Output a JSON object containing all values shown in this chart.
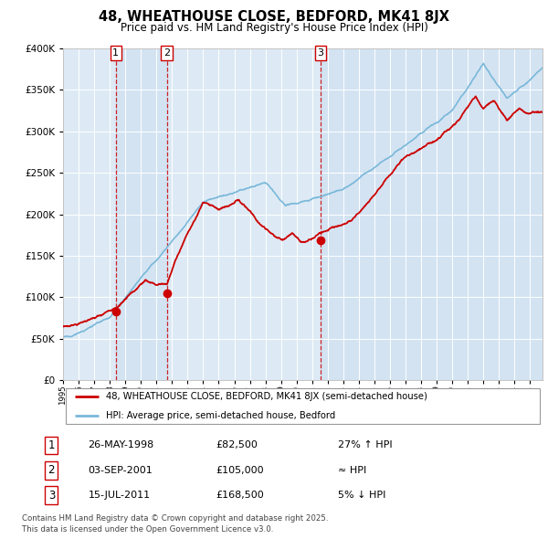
{
  "title": "48, WHEATHOUSE CLOSE, BEDFORD, MK41 8JX",
  "subtitle": "Price paid vs. HM Land Registry's House Price Index (HPI)",
  "legend_property": "48, WHEATHOUSE CLOSE, BEDFORD, MK41 8JX (semi-detached house)",
  "legend_hpi": "HPI: Average price, semi-detached house, Bedford",
  "transactions": [
    {
      "num": 1,
      "date": "26-MAY-1998",
      "price": 82500,
      "rel": "27% ↑ HPI",
      "year": 1998.39
    },
    {
      "num": 2,
      "date": "03-SEP-2001",
      "price": 105000,
      "rel": "≈ HPI",
      "year": 2001.67
    },
    {
      "num": 3,
      "date": "15-JUL-2011",
      "price": 168500,
      "rel": "5% ↓ HPI",
      "year": 2011.54
    }
  ],
  "footnote1": "Contains HM Land Registry data © Crown copyright and database right 2025.",
  "footnote2": "This data is licensed under the Open Government Licence v3.0.",
  "hpi_color": "#7ab8d9",
  "property_color": "#cc0000",
  "plot_bg_color": "#ddeaf5",
  "grid_color": "#ffffff",
  "ylim": [
    0,
    400000
  ],
  "xlim_start": 1995.0,
  "xlim_end": 2025.8
}
